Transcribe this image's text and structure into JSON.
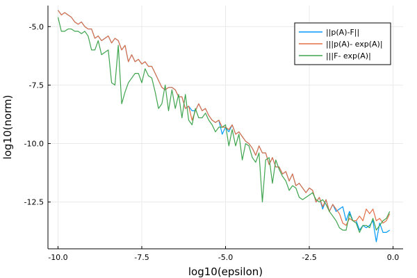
{
  "chart_data": {
    "type": "line",
    "title": "",
    "xlabel": "log10(epsilon)",
    "ylabel": "log10(norm)",
    "xlim": [
      -10.3,
      0.3
    ],
    "ylim": [
      -14.5,
      -4.1
    ],
    "xticks": [
      -10.0,
      -7.5,
      -5.0,
      -2.5,
      0.0
    ],
    "xtick_labels": [
      "-10.0",
      "-7.5",
      "-5.0",
      "-2.5",
      "0.0"
    ],
    "yticks": [
      -5.0,
      -7.5,
      -10.0,
      -12.5
    ],
    "ytick_labels": [
      "-5.0",
      "-7.5",
      "-10.0",
      "-12.5"
    ],
    "grid": true,
    "legend_position": "top-right",
    "series": [
      {
        "name": "||p(A)-F||",
        "color": "#009af9",
        "x": [
          -10.0,
          -9.9,
          -9.8,
          -9.7,
          -9.6,
          -9.5,
          -9.4,
          -9.3,
          -9.2,
          -9.1,
          -9.0,
          -8.9,
          -8.8,
          -8.7,
          -8.6,
          -8.5,
          -8.4,
          -8.3,
          -8.2,
          -8.1,
          -8.0,
          -7.9,
          -7.8,
          -7.7,
          -7.6,
          -7.5,
          -7.4,
          -7.3,
          -7.2,
          -7.1,
          -7.0,
          -6.9,
          -6.8,
          -6.7,
          -6.6,
          -6.5,
          -6.4,
          -6.3,
          -6.2,
          -6.1,
          -6.0,
          -5.9,
          -5.8,
          -5.7,
          -5.6,
          -5.5,
          -5.4,
          -5.3,
          -5.2,
          -5.1,
          -5.0,
          -4.9,
          -4.8,
          -4.7,
          -4.6,
          -4.5,
          -4.4,
          -4.3,
          -4.2,
          -4.1,
          -4.0,
          -3.9,
          -3.8,
          -3.7,
          -3.6,
          -3.5,
          -3.4,
          -3.3,
          -3.2,
          -3.1,
          -3.0,
          -2.9,
          -2.8,
          -2.7,
          -2.6,
          -2.5,
          -2.4,
          -2.3,
          -2.2,
          -2.1,
          -2.0,
          -1.9,
          -1.8,
          -1.7,
          -1.6,
          -1.5,
          -1.4,
          -1.3,
          -1.2,
          -1.1,
          -1.0,
          -0.9,
          -0.8,
          -0.7,
          -0.6,
          -0.5,
          -0.4,
          -0.3,
          -0.2,
          -0.1
        ],
        "y": [
          -4.3,
          -4.5,
          -4.4,
          -4.5,
          -4.6,
          -4.8,
          -4.9,
          -4.8,
          -5.0,
          -5.1,
          -5.1,
          -5.5,
          -5.4,
          -5.6,
          -5.5,
          -5.4,
          -5.7,
          -5.5,
          -5.6,
          -6.0,
          -5.8,
          -6.5,
          -6.2,
          -6.5,
          -6.4,
          -6.6,
          -6.5,
          -6.7,
          -6.7,
          -7.0,
          -7.3,
          -7.6,
          -7.7,
          -7.6,
          -7.6,
          -7.7,
          -8.0,
          -8.0,
          -8.5,
          -8.4,
          -8.6,
          -8.6,
          -8.3,
          -8.6,
          -8.5,
          -8.8,
          -9.0,
          -9.1,
          -9.0,
          -9.6,
          -9.3,
          -9.5,
          -9.2,
          -9.6,
          -9.5,
          -9.7,
          -9.9,
          -10.0,
          -10.2,
          -10.5,
          -10.1,
          -10.4,
          -10.4,
          -10.9,
          -10.6,
          -11.0,
          -11.0,
          -11.3,
          -11.2,
          -11.6,
          -11.3,
          -11.8,
          -11.7,
          -11.9,
          -12.1,
          -11.9,
          -12.0,
          -12.5,
          -12.3,
          -12.8,
          -12.4,
          -12.9,
          -12.6,
          -12.9,
          -12.8,
          -12.7,
          -13.3,
          -12.9,
          -13.3,
          -13.3,
          -13.7,
          -13.5,
          -13.6,
          -13.5,
          -13.3,
          -14.2,
          -13.4,
          -13.8,
          -13.8,
          -13.7
        ]
      },
      {
        "name": "|||p(A)- exp(A)|",
        "color": "#e26f46",
        "x": [
          -10.0,
          -9.9,
          -9.8,
          -9.7,
          -9.6,
          -9.5,
          -9.4,
          -9.3,
          -9.2,
          -9.1,
          -9.0,
          -8.9,
          -8.8,
          -8.7,
          -8.6,
          -8.5,
          -8.4,
          -8.3,
          -8.2,
          -8.1,
          -8.0,
          -7.9,
          -7.8,
          -7.7,
          -7.6,
          -7.5,
          -7.4,
          -7.3,
          -7.2,
          -7.1,
          -7.0,
          -6.9,
          -6.8,
          -6.7,
          -6.6,
          -6.5,
          -6.4,
          -6.3,
          -6.2,
          -6.1,
          -6.0,
          -5.9,
          -5.8,
          -5.7,
          -5.6,
          -5.5,
          -5.4,
          -5.3,
          -5.2,
          -5.1,
          -5.0,
          -4.9,
          -4.8,
          -4.7,
          -4.6,
          -4.5,
          -4.4,
          -4.3,
          -4.2,
          -4.1,
          -4.0,
          -3.9,
          -3.8,
          -3.7,
          -3.6,
          -3.5,
          -3.4,
          -3.3,
          -3.2,
          -3.1,
          -3.0,
          -2.9,
          -2.8,
          -2.7,
          -2.6,
          -2.5,
          -2.4,
          -2.3,
          -2.2,
          -2.1,
          -2.0,
          -1.9,
          -1.8,
          -1.7,
          -1.6,
          -1.5,
          -1.4,
          -1.3,
          -1.2,
          -1.1,
          -1.0,
          -0.9,
          -0.8,
          -0.7,
          -0.6,
          -0.5,
          -0.4,
          -0.3,
          -0.2,
          -0.1
        ],
        "y": [
          -4.3,
          -4.5,
          -4.4,
          -4.5,
          -4.6,
          -4.8,
          -4.9,
          -4.8,
          -5.0,
          -5.1,
          -5.1,
          -5.5,
          -5.4,
          -5.6,
          -5.5,
          -5.4,
          -5.7,
          -5.5,
          -5.6,
          -6.0,
          -5.8,
          -6.5,
          -6.2,
          -6.5,
          -6.4,
          -6.6,
          -6.5,
          -6.7,
          -6.7,
          -7.0,
          -7.3,
          -7.6,
          -7.7,
          -7.6,
          -7.6,
          -7.7,
          -8.0,
          -8.0,
          -8.5,
          -8.4,
          -9.0,
          -8.6,
          -8.3,
          -8.6,
          -8.5,
          -8.8,
          -9.0,
          -9.1,
          -9.0,
          -9.3,
          -9.3,
          -9.4,
          -9.2,
          -9.6,
          -9.5,
          -9.7,
          -9.9,
          -10.0,
          -10.2,
          -10.5,
          -10.1,
          -10.4,
          -10.4,
          -10.9,
          -10.6,
          -11.0,
          -11.0,
          -11.3,
          -11.2,
          -11.6,
          -11.3,
          -11.8,
          -11.7,
          -11.9,
          -12.1,
          -11.9,
          -12.0,
          -12.5,
          -12.3,
          -12.7,
          -12.4,
          -12.9,
          -12.6,
          -12.8,
          -13.0,
          -13.4,
          -13.5,
          -13.2,
          -13.3,
          -13.3,
          -13.1,
          -13.3,
          -12.8,
          -13.0,
          -12.8,
          -13.3,
          -13.2,
          -13.4,
          -13.3,
          -13.0
        ]
      },
      {
        "name": "|||F- exp(A)|",
        "color": "#3ea44e",
        "x": [
          -10.0,
          -9.9,
          -9.8,
          -9.7,
          -9.6,
          -9.5,
          -9.4,
          -9.3,
          -9.2,
          -9.1,
          -9.0,
          -8.9,
          -8.8,
          -8.7,
          -8.6,
          -8.5,
          -8.4,
          -8.3,
          -8.2,
          -8.1,
          -8.0,
          -7.9,
          -7.8,
          -7.7,
          -7.6,
          -7.5,
          -7.4,
          -7.3,
          -7.2,
          -7.1,
          -7.0,
          -6.9,
          -6.8,
          -6.7,
          -6.6,
          -6.5,
          -6.4,
          -6.3,
          -6.2,
          -6.1,
          -6.0,
          -5.9,
          -5.8,
          -5.7,
          -5.6,
          -5.5,
          -5.4,
          -5.3,
          -5.2,
          -5.1,
          -5.0,
          -4.9,
          -4.8,
          -4.7,
          -4.6,
          -4.5,
          -4.4,
          -4.3,
          -4.2,
          -4.1,
          -4.0,
          -3.9,
          -3.8,
          -3.7,
          -3.6,
          -3.5,
          -3.4,
          -3.3,
          -3.2,
          -3.1,
          -3.0,
          -2.9,
          -2.8,
          -2.7,
          -2.6,
          -2.5,
          -2.4,
          -2.3,
          -2.2,
          -2.1,
          -2.0,
          -1.9,
          -1.8,
          -1.7,
          -1.6,
          -1.5,
          -1.4,
          -1.3,
          -1.2,
          -1.1,
          -1.0,
          -0.9,
          -0.8,
          -0.7,
          -0.6,
          -0.5,
          -0.4,
          -0.3,
          -0.2,
          -0.1
        ],
        "y": [
          -4.6,
          -5.2,
          -5.2,
          -5.1,
          -5.1,
          -5.2,
          -5.2,
          -5.3,
          -5.2,
          -5.4,
          -6.0,
          -6.0,
          -5.6,
          -6.2,
          -6.1,
          -6.0,
          -7.4,
          -7.5,
          -5.8,
          -8.3,
          -7.8,
          -7.4,
          -7.2,
          -7.0,
          -7.0,
          -7.4,
          -6.8,
          -7.1,
          -7.2,
          -7.8,
          -8.5,
          -8.3,
          -7.5,
          -8.6,
          -7.7,
          -8.5,
          -7.9,
          -8.9,
          -7.9,
          -9.0,
          -9.2,
          -8.5,
          -8.9,
          -8.9,
          -8.7,
          -9.0,
          -9.2,
          -9.5,
          -9.3,
          -9.3,
          -9.2,
          -10.1,
          -9.4,
          -10.1,
          -9.6,
          -10.7,
          -10.0,
          -10.1,
          -10.6,
          -10.8,
          -10.4,
          -12.5,
          -10.7,
          -10.6,
          -11.7,
          -10.7,
          -11.1,
          -11.4,
          -11.6,
          -12.0,
          -11.8,
          -11.9,
          -12.3,
          -12.4,
          -12.3,
          -12.2,
          -12.1,
          -12.4,
          -12.5,
          -12.4,
          -12.6,
          -12.9,
          -13.1,
          -13.3,
          -13.6,
          -13.7,
          -13.7,
          -13.0,
          -13.3,
          -13.4,
          -13.8,
          -13.5,
          -13.5,
          -13.6,
          -13.2,
          -13.7,
          -13.5,
          -13.3,
          -13.2,
          -12.9
        ]
      }
    ]
  }
}
